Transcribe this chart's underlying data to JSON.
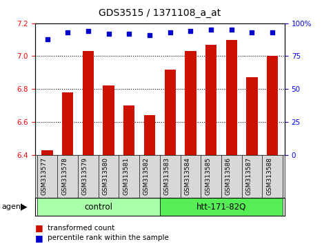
{
  "title": "GDS3515 / 1371108_a_at",
  "samples": [
    "GSM313577",
    "GSM313578",
    "GSM313579",
    "GSM313580",
    "GSM313581",
    "GSM313582",
    "GSM313583",
    "GSM313584",
    "GSM313585",
    "GSM313586",
    "GSM313587",
    "GSM313588"
  ],
  "bar_values": [
    6.43,
    6.78,
    7.03,
    6.82,
    6.7,
    6.64,
    6.92,
    7.03,
    7.07,
    7.1,
    6.87,
    7.0
  ],
  "percentile_values": [
    88,
    93,
    94,
    92,
    92,
    91,
    93,
    94,
    95,
    95,
    93,
    93
  ],
  "bar_color": "#cc1100",
  "dot_color": "#0000cc",
  "ylim_left": [
    6.4,
    7.2
  ],
  "ylim_right": [
    0,
    100
  ],
  "yticks_left": [
    6.4,
    6.6,
    6.8,
    7.0,
    7.2
  ],
  "yticks_right": [
    0,
    25,
    50,
    75,
    100
  ],
  "ytick_labels_right": [
    "0",
    "25",
    "50",
    "75",
    "100%"
  ],
  "group_labels": [
    "control",
    "htt-171-82Q"
  ],
  "group_colors": [
    "#aaffaa",
    "#55ee55"
  ],
  "group_boundaries": [
    0,
    6,
    12
  ],
  "agent_label": "agent",
  "legend_bar_label": "transformed count",
  "legend_dot_label": "percentile rank within the sample",
  "bg_color": "#ffffff",
  "plot_bg": "#ffffff",
  "title_fontsize": 10,
  "tick_fontsize": 7.5,
  "sample_fontsize": 6.5,
  "bar_width": 0.55
}
